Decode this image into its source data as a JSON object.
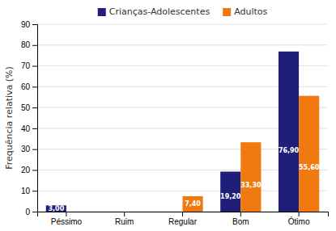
{
  "chart_data": {
    "type": "bar",
    "categories": [
      "Péssimo",
      "Ruim",
      "Regular",
      "Bom",
      "Ótimo"
    ],
    "series": [
      {
        "name": "Crianças-Adolescentes",
        "color": "#1F1F7A",
        "values": [
          3.0,
          0,
          0,
          19.2,
          76.9
        ],
        "value_labels": [
          "3,00",
          null,
          null,
          "19,20",
          "76,90"
        ]
      },
      {
        "name": "Adultos",
        "color": "#F07A10",
        "values": [
          0,
          0,
          7.4,
          33.3,
          55.6
        ],
        "value_labels": [
          null,
          null,
          "7,40",
          "33,30",
          "55,60"
        ]
      }
    ],
    "ylabel": "Frequência relativa (%)",
    "ylim": [
      0,
      90
    ],
    "yticks": [
      0,
      10,
      20,
      30,
      40,
      50,
      60,
      70,
      80,
      90
    ],
    "grid": true,
    "legend": "top",
    "data_labels": true
  }
}
